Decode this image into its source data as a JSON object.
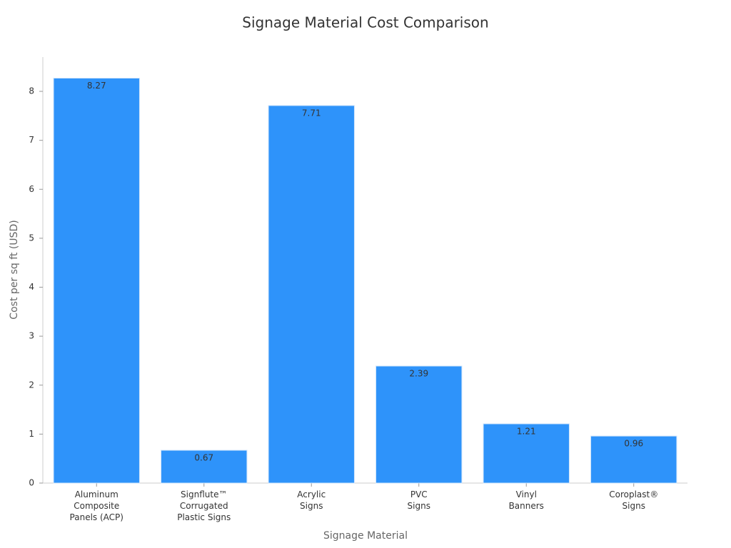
{
  "chart_data": {
    "type": "bar",
    "title": "Signage Material Cost Comparison",
    "x_label": "Signage Material",
    "y_label": "Cost per sq ft (USD)",
    "categories": [
      "Aluminum\nComposite\nPanels (ACP)",
      "Signflute™\nCorrugated\nPlastic Signs",
      "Acrylic\nSigns",
      "PVC\nSigns",
      "Vinyl\nBanners",
      "Coroplast®\nSigns"
    ],
    "values": [
      8.27,
      0.67,
      7.71,
      2.39,
      1.21,
      0.96
    ],
    "color": "#2e93fa",
    "ylim": [
      0,
      8.7
    ],
    "yticks": [
      0,
      1,
      2,
      3,
      4,
      5,
      6,
      7,
      8
    ],
    "grid": false
  }
}
